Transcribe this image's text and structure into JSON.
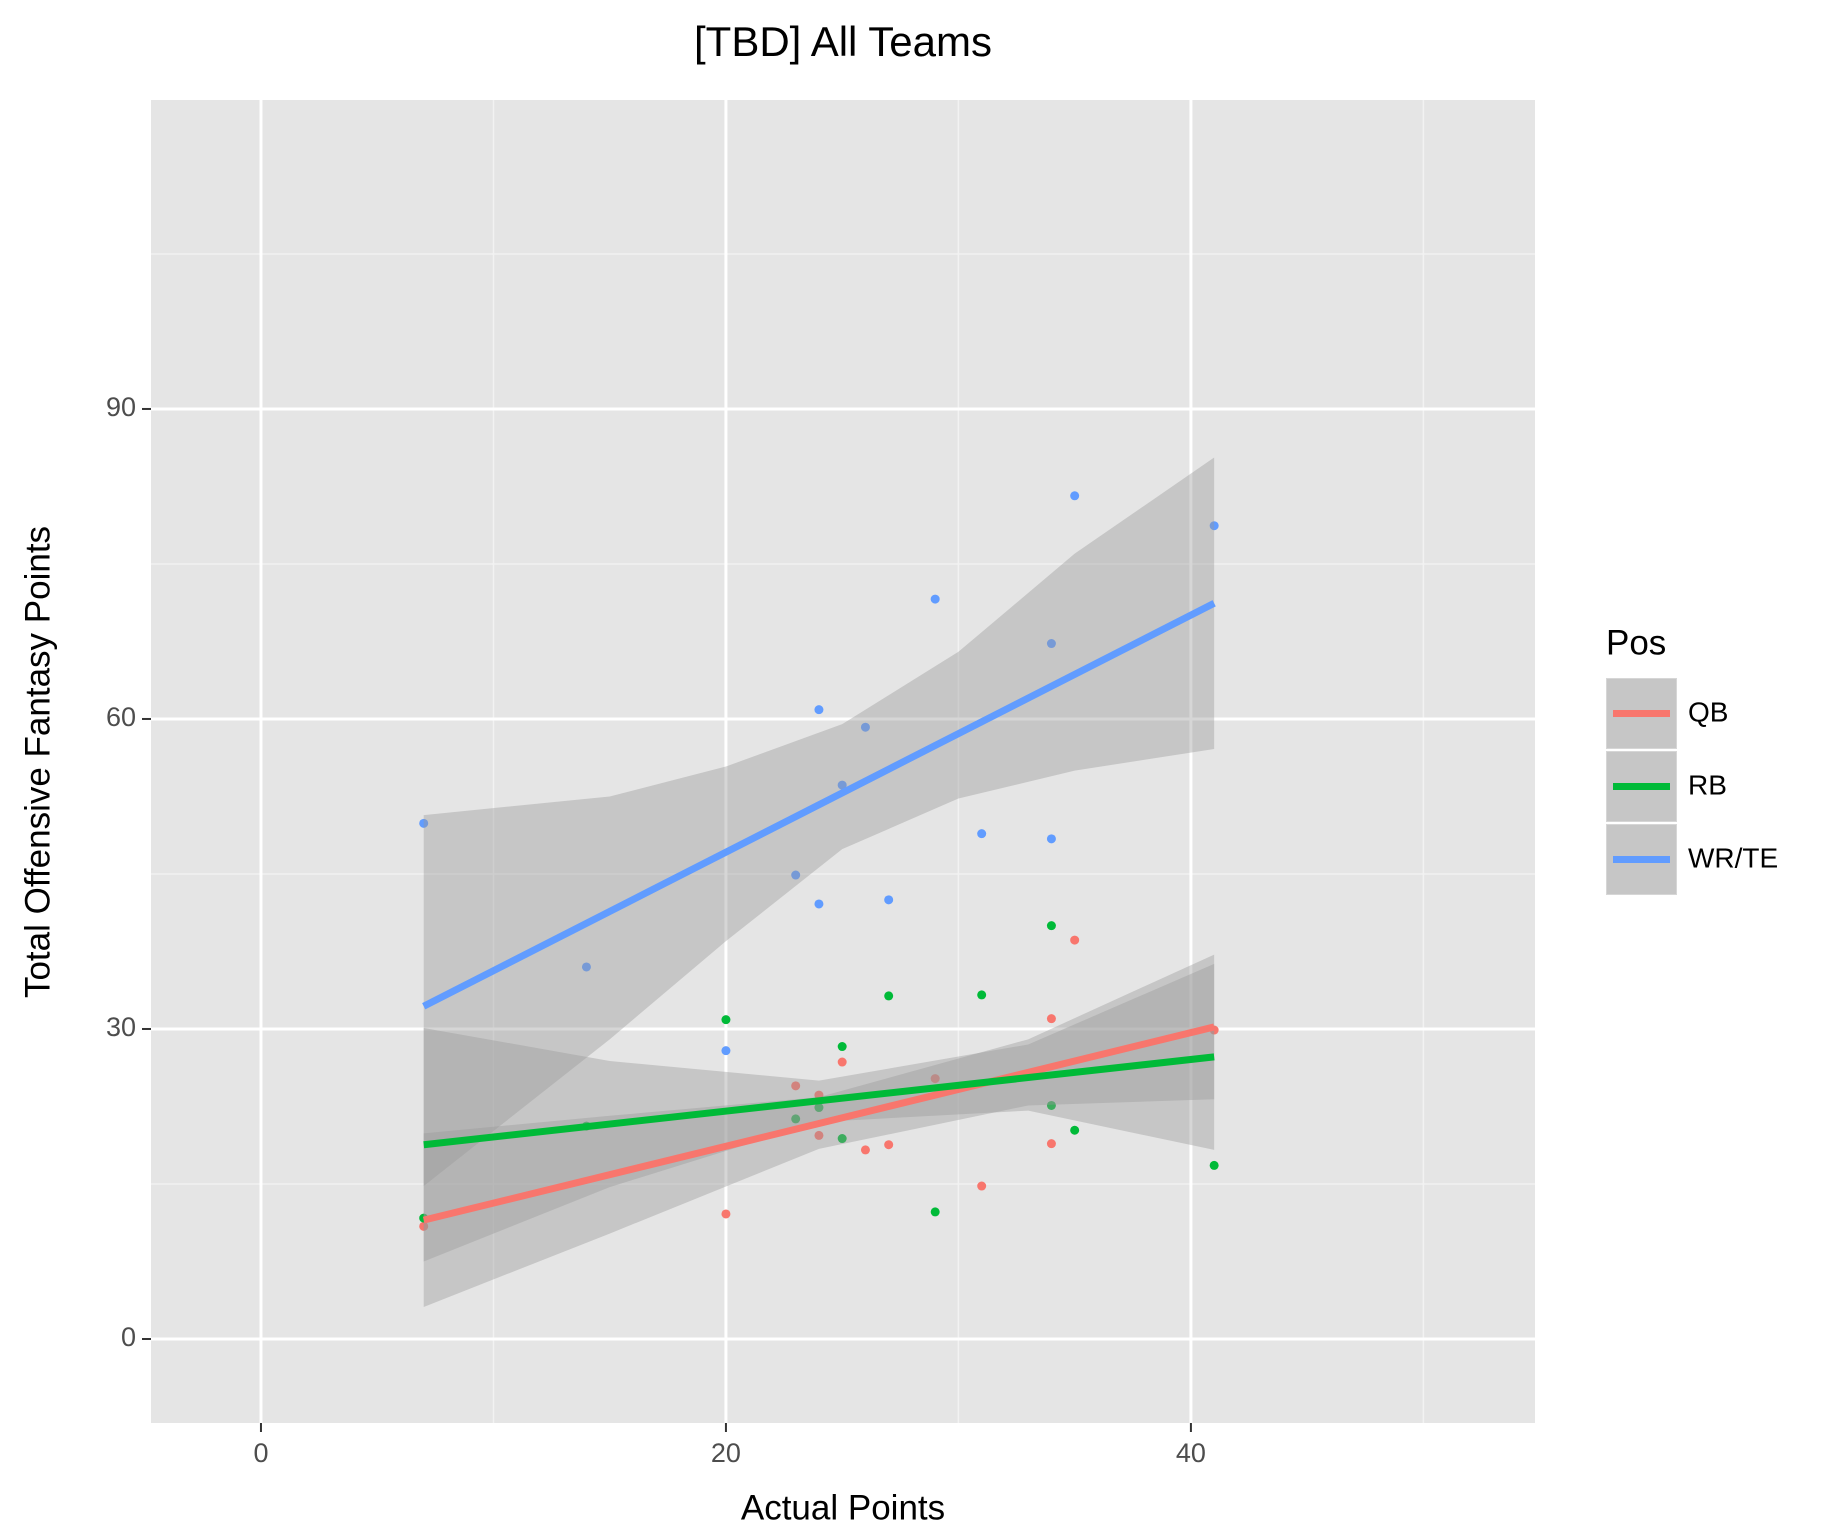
{
  "chart_data": {
    "type": "scatter",
    "title": "[TBD] All Teams",
    "x_label": "Actual Points",
    "y_label": "Total Offensive Fantasy Points",
    "legend_title": "Pos",
    "legend_position": "right",
    "grid": true,
    "xlim": [
      -4.73,
      54.8
    ],
    "ylim": [
      -8.13,
      119.9
    ],
    "xticks": [
      0,
      20,
      40
    ],
    "yticks": [
      0,
      30,
      60,
      90
    ],
    "xminor": [
      10,
      30,
      50
    ],
    "yminor": [
      15,
      45,
      75,
      105
    ],
    "band_color": "#999999",
    "series": [
      {
        "name": "QB",
        "color": "#f8766d",
        "x": [
          7,
          20,
          23,
          24,
          24,
          25,
          26,
          27,
          29,
          31,
          34,
          34,
          35,
          41
        ],
        "values": [
          10.9,
          12.1,
          24.5,
          23.6,
          19.7,
          26.8,
          18.3,
          18.8,
          25.2,
          14.8,
          31.0,
          18.9,
          38.6,
          29.9
        ],
        "fit_x": [
          7,
          41
        ],
        "fit": [
          11.5,
          30.2
        ],
        "band_x": [
          7,
          15,
          24,
          33,
          41
        ],
        "band_upper": [
          19.9,
          21.6,
          23.4,
          29.0,
          37.2
        ],
        "band_lower": [
          3.1,
          10.2,
          18.4,
          22.6,
          23.2
        ]
      },
      {
        "name": "RB",
        "color": "#00ba38",
        "x": [
          7,
          14,
          20,
          23,
          24,
          25,
          25,
          27,
          29,
          31,
          34,
          34,
          35,
          41
        ],
        "values": [
          11.7,
          20.6,
          30.9,
          21.3,
          22.4,
          28.3,
          19.4,
          33.2,
          12.3,
          33.3,
          40.0,
          22.6,
          20.2,
          16.8
        ],
        "fit_x": [
          7,
          41
        ],
        "fit": [
          18.8,
          27.3
        ],
        "band_x": [
          7,
          15,
          24,
          33,
          41
        ],
        "band_upper": [
          30.1,
          26.9,
          25.0,
          28.5,
          36.3
        ],
        "band_lower": [
          7.5,
          14.7,
          21.0,
          22.1,
          18.3
        ]
      },
      {
        "name": "WR/TE",
        "color": "#619cff",
        "x": [
          7,
          14,
          20,
          23,
          24,
          24,
          25,
          26,
          27,
          29,
          31,
          34,
          34,
          35,
          41
        ],
        "values": [
          49.9,
          36.0,
          27.9,
          44.9,
          60.9,
          42.1,
          53.6,
          59.2,
          42.5,
          71.6,
          48.9,
          67.3,
          48.4,
          81.6,
          78.7
        ],
        "fit_x": [
          7,
          41
        ],
        "fit": [
          32.2,
          71.2
        ],
        "band_x": [
          7,
          15,
          20,
          25,
          30,
          35,
          41
        ],
        "band_upper": [
          50.7,
          52.5,
          55.4,
          59.5,
          66.5,
          76.0,
          85.3
        ],
        "band_lower": [
          14.8,
          29.0,
          38.5,
          47.4,
          52.3,
          55.0,
          57.1
        ]
      }
    ]
  }
}
